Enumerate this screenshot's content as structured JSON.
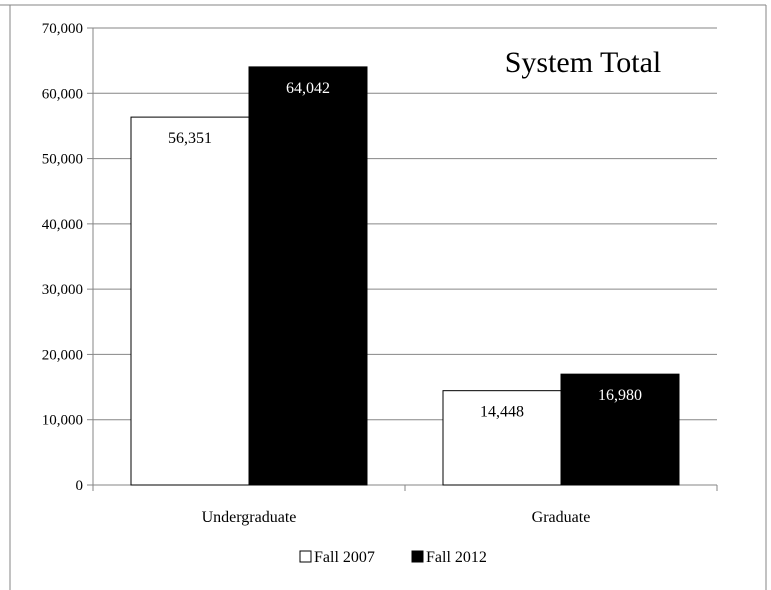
{
  "chart_data": {
    "type": "bar",
    "title": "System Total",
    "xlabel": "",
    "ylabel": "",
    "categories": [
      "Undergraduate",
      "Graduate"
    ],
    "series": [
      {
        "name": "Fall 2007",
        "values": [
          56351,
          14448
        ],
        "labels": [
          "56,351",
          "14,448"
        ],
        "color": "#ffffff",
        "label_color": "#000000"
      },
      {
        "name": "Fall 2012",
        "values": [
          64042,
          16980
        ],
        "labels": [
          "64,042",
          "16,980"
        ],
        "color": "#000000",
        "label_color": "#ffffff"
      }
    ],
    "ylim": [
      0,
      70000
    ],
    "yticks": [
      0,
      10000,
      20000,
      30000,
      40000,
      50000,
      60000,
      70000
    ],
    "ytick_labels": [
      "0",
      "10,000",
      "20,000",
      "30,000",
      "40,000",
      "50,000",
      "60,000",
      "70,000"
    ],
    "grid": true,
    "legend_position": "bottom"
  }
}
